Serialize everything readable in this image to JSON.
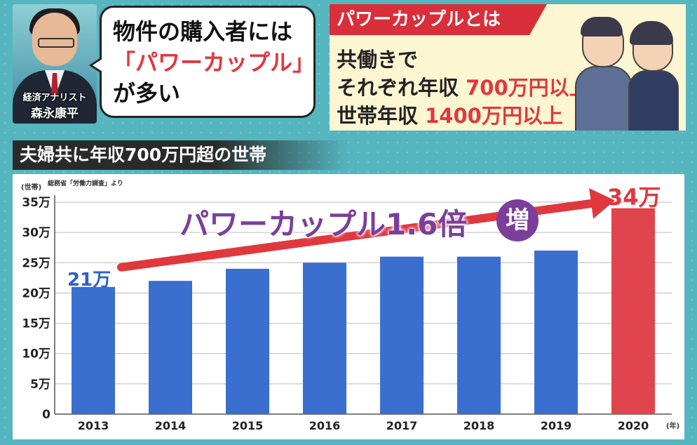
{
  "analyst": {
    "title": "経済アナリスト",
    "name": "森永康平"
  },
  "bubble": {
    "line1": "物件の購入者には",
    "line2": "「パワーカップル」",
    "line3": "が多い"
  },
  "definition": {
    "tag": "パワーカップルとは",
    "line1": "共働きで",
    "line2_prefix": "それぞれ年収 ",
    "line2_value": "700万円以上",
    "line3_prefix": "世帯年収 ",
    "line3_value": "1400万円以上"
  },
  "chart_header": "夫婦共に年収700万円超の世帯",
  "source_note": "総務省「労働力調査」より",
  "annotation": {
    "text": "パワーカップル1.6倍",
    "badge": "増"
  },
  "colors": {
    "bar": "#3a6fd0",
    "bar_highlight": "#e0444c",
    "accent_red": "#e0383e",
    "accent_purple": "#7a3f9b"
  },
  "chart_data": {
    "type": "bar",
    "title": "夫婦共に年収700万円超の世帯",
    "xlabel": "(年)",
    "ylabel": "(世帯)",
    "categories": [
      "2013",
      "2014",
      "2015",
      "2016",
      "2017",
      "2018",
      "2019",
      "2020"
    ],
    "values": [
      21,
      22,
      24,
      25,
      26,
      26,
      27,
      34
    ],
    "value_unit": "万",
    "ylim": [
      0,
      35
    ],
    "yticks": [
      0,
      5,
      10,
      15,
      20,
      25,
      30,
      35
    ],
    "ytick_labels": [
      "0",
      "5万",
      "10万",
      "15万",
      "20万",
      "25万",
      "30万",
      "35万"
    ],
    "data_labels": {
      "first": "21万",
      "last": "34万"
    },
    "highlight_index": 7,
    "grid": true
  }
}
